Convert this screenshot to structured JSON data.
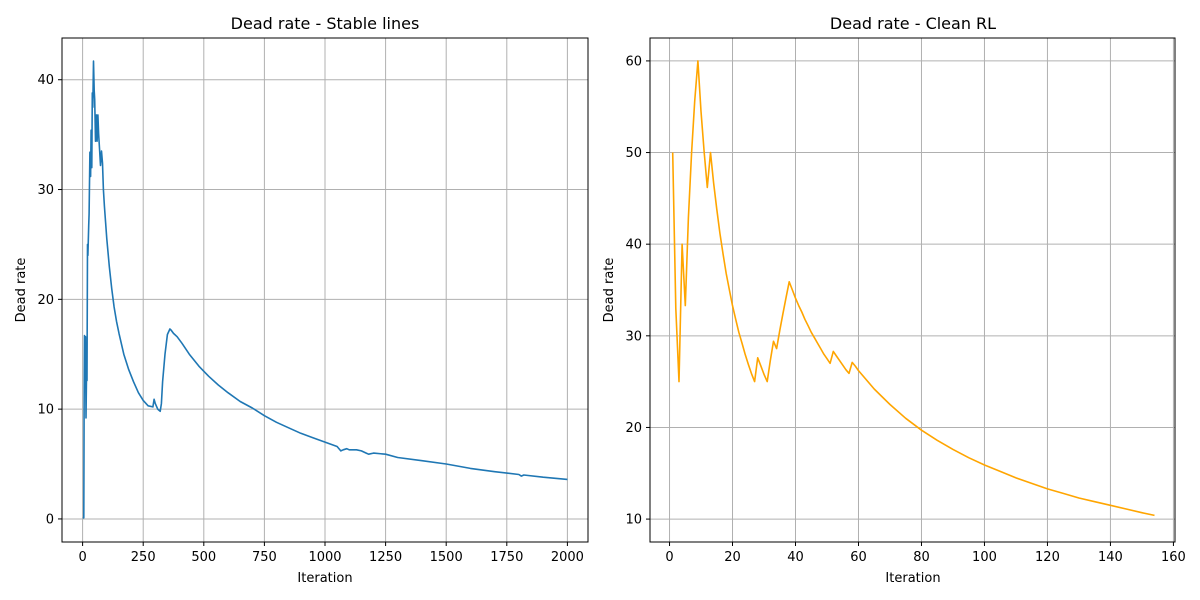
{
  "chart_data": [
    {
      "type": "line",
      "title": "Dead rate - Stable lines",
      "xlabel": "Iteration",
      "ylabel": "Dead rate",
      "xlim": [
        -85,
        2085
      ],
      "ylim": [
        -2.1,
        43.8
      ],
      "xticks": [
        0,
        250,
        500,
        750,
        1000,
        1250,
        1500,
        1750,
        2000
      ],
      "yticks": [
        0,
        10,
        20,
        30,
        40
      ],
      "grid": true,
      "color": "#1f77b4",
      "series": [
        {
          "x": [
            1,
            5,
            6,
            8,
            10,
            12,
            14,
            16,
            18,
            20,
            22,
            25,
            27,
            30,
            33,
            35,
            38,
            40,
            42,
            45,
            48,
            50,
            53,
            55,
            57,
            60,
            63,
            66,
            70,
            74,
            78,
            82,
            86,
            90,
            95,
            100,
            110,
            120,
            130,
            140,
            150,
            170,
            190,
            210,
            230,
            250,
            270,
            290,
            295,
            300,
            310,
            320,
            325,
            330,
            340,
            350,
            360,
            365,
            375,
            390,
            410,
            440,
            480,
            520,
            560,
            600,
            650,
            700,
            750,
            800,
            850,
            900,
            950,
            1000,
            1050,
            1065,
            1075,
            1090,
            1100,
            1130,
            1150,
            1170,
            1180,
            1200,
            1250,
            1300,
            1400,
            1500,
            1600,
            1700,
            1800,
            1810,
            1820,
            1900,
            2000
          ],
          "y": [
            0.1,
            0.1,
            10,
            16.7,
            14,
            16.6,
            9.2,
            13,
            12.6,
            25,
            24,
            26.7,
            27.8,
            33.4,
            31.2,
            35.4,
            32,
            38.8,
            37.5,
            41.7,
            39,
            38.2,
            34.4,
            35.4,
            36.8,
            34.4,
            36.8,
            35.1,
            33.6,
            32.2,
            33.5,
            32.4,
            30,
            28.5,
            27,
            25.5,
            23,
            21,
            19.3,
            18,
            16.9,
            15,
            13.6,
            12.5,
            11.5,
            10.8,
            10.3,
            10.2,
            10.9,
            10.5,
            10,
            9.8,
            10.5,
            12.5,
            15,
            16.8,
            17.3,
            17.2,
            16.9,
            16.6,
            16,
            15,
            13.9,
            13,
            12.2,
            11.5,
            10.7,
            10.1,
            9.4,
            8.8,
            8.3,
            7.8,
            7.4,
            7.0,
            6.6,
            6.2,
            6.3,
            6.4,
            6.3,
            6.3,
            6.2,
            6.0,
            5.9,
            6.0,
            5.9,
            5.6,
            5.3,
            5.0,
            4.6,
            4.3,
            4.05,
            3.9,
            4.0,
            3.8,
            3.6
          ]
        }
      ]
    },
    {
      "type": "line",
      "title": "Dead rate - Clean RL",
      "xlabel": "Iteration",
      "ylabel": "Dead rate",
      "xlim": [
        -6.2,
        160.5
      ],
      "ylim": [
        7.5,
        62.5
      ],
      "xticks": [
        0,
        20,
        40,
        60,
        80,
        100,
        120,
        140,
        160
      ],
      "yticks": [
        10,
        20,
        30,
        40,
        50,
        60
      ],
      "grid": true,
      "color": "#ffa500",
      "series": [
        {
          "x": [
            1,
            2,
            3,
            4,
            5,
            6,
            7,
            8,
            9,
            10,
            11,
            12,
            13,
            14,
            15,
            16,
            17,
            18,
            19,
            20,
            21,
            22,
            23,
            24,
            25,
            26,
            27,
            28,
            29,
            30,
            31,
            32,
            33,
            34,
            35,
            36,
            37,
            38,
            39,
            40,
            41,
            42,
            43,
            44,
            45,
            46,
            47,
            48,
            49,
            50,
            51,
            52,
            53,
            54,
            55,
            56,
            57,
            58,
            59,
            60,
            65,
            70,
            75,
            80,
            85,
            90,
            95,
            100,
            105,
            110,
            115,
            120,
            125,
            130,
            135,
            140,
            145,
            150,
            154
          ],
          "y": [
            50,
            33,
            25,
            40,
            33.3,
            42.9,
            50,
            55.6,
            60,
            54.5,
            50,
            46.2,
            50,
            46.7,
            43.8,
            41.2,
            38.9,
            36.8,
            35,
            33.3,
            31.8,
            30.4,
            29.2,
            28,
            26.9,
            25.9,
            25,
            27.6,
            26.7,
            25.8,
            25,
            27.3,
            29.4,
            28.6,
            30.6,
            32.4,
            34.2,
            35.9,
            35,
            34.1,
            33.3,
            32.6,
            31.8,
            31.1,
            30.4,
            29.8,
            29.2,
            28.6,
            28,
            27.5,
            27,
            28.3,
            27.8,
            27.3,
            26.8,
            26.3,
            25.9,
            27.1,
            26.7,
            26.2,
            24.2,
            22.5,
            21,
            19.7,
            18.6,
            17.6,
            16.7,
            15.9,
            15.2,
            14.5,
            13.9,
            13.3,
            12.8,
            12.3,
            11.9,
            11.5,
            11.1,
            10.7,
            10.4
          ]
        }
      ]
    }
  ]
}
